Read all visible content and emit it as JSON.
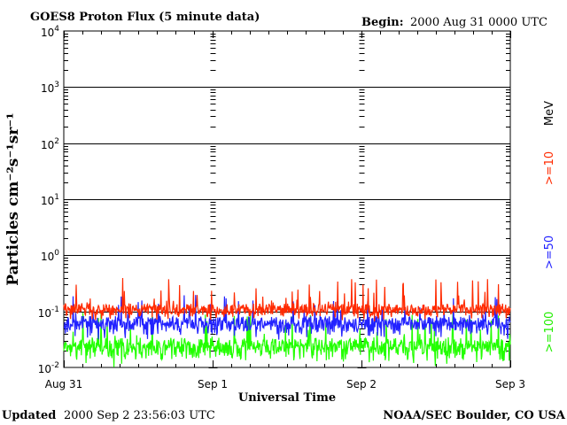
{
  "header": {
    "title": "GOES8 Proton Flux (5 minute data)",
    "begin_label": "Begin:",
    "begin_value": "2000 Aug 31 0000 UTC"
  },
  "footer": {
    "updated_label": "Updated",
    "updated_value": "2000 Sep  2 23:56:03 UTC",
    "credit": "NOAA/SEC Boulder, CO USA"
  },
  "colors": {
    "ge10": "#ff2a00",
    "ge50": "#2222ff",
    "ge100": "#22ff00",
    "grid": "#000000"
  },
  "chart_data": {
    "type": "line",
    "title": "GOES8 Proton Flux (5 minute data)",
    "xlabel": "Universal Time",
    "ylabel": "Particles cm⁻²s⁻¹sr⁻¹",
    "y_scale": "log",
    "ylim": [
      0.01,
      10000
    ],
    "y_ticks": [
      {
        "base": "10",
        "exp": "-2",
        "value": 0.01
      },
      {
        "base": "10",
        "exp": "-1",
        "value": 0.1
      },
      {
        "base": "10",
        "exp": "0",
        "value": 1
      },
      {
        "base": "10",
        "exp": "1",
        "value": 10
      },
      {
        "base": "10",
        "exp": "2",
        "value": 100
      },
      {
        "base": "10",
        "exp": "3",
        "value": 1000
      },
      {
        "base": "10",
        "exp": "4",
        "value": 10000
      }
    ],
    "x_ticks": [
      "Aug 31",
      "Sep 1",
      "Sep 2",
      "Sep 3"
    ],
    "xlim": [
      "2000-08-31",
      "2000-09-03"
    ],
    "grid": true,
    "legend": {
      "placement": "right",
      "unit": "MeV"
    },
    "series": [
      {
        "name": ">=10",
        "typical": 0.1,
        "low": 0.07,
        "high": 0.4
      },
      {
        "name": ">=50",
        "typical": 0.06,
        "low": 0.03,
        "high": 0.2
      },
      {
        "name": ">=100",
        "typical": 0.025,
        "low": 0.01,
        "high": 0.1
      }
    ]
  }
}
